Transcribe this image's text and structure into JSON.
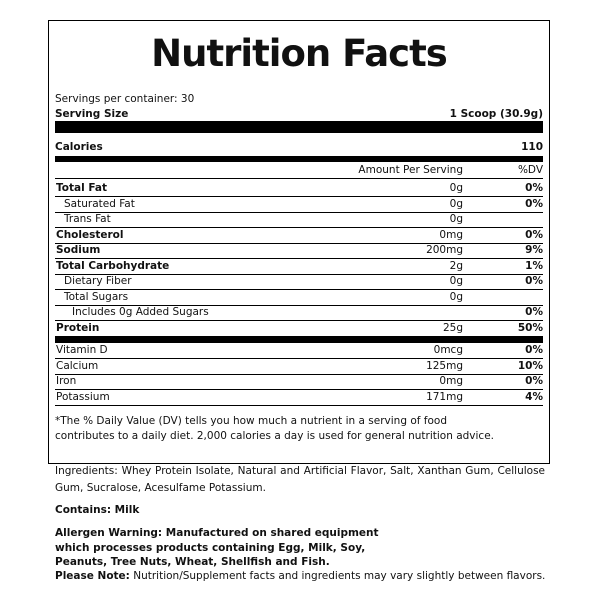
{
  "label": {
    "title": "Nutrition Facts",
    "servings": "Servings per container: 30",
    "serving_size_label": "Serving Size",
    "serving_size": "1 Scoop (30.9g)",
    "calories_label": "Calories",
    "calories": "110",
    "amount_header": "Amount Per Serving",
    "dv_header": "%DV",
    "nutrients": [
      {
        "label": "Total Fat",
        "amount": "0g",
        "dv": "0%",
        "bold": true,
        "indent": 0
      },
      {
        "label": "Saturated Fat",
        "amount": "0g",
        "dv": "0%",
        "bold": false,
        "indent": 1
      },
      {
        "label": "Trans Fat",
        "amount": "0g",
        "bold": false,
        "indent": 1
      },
      {
        "label": "Cholesterol",
        "amount": "0mg",
        "dv": "0%",
        "bold": true,
        "indent": 0
      },
      {
        "label": "Sodium",
        "amount": "200mg",
        "dv": "9%",
        "bold": true,
        "indent": 0
      },
      {
        "label": "Total Carbohydrate",
        "amount": "2g",
        "dv": "1%",
        "bold": true,
        "indent": 0
      },
      {
        "label": "Dietary Fiber",
        "amount": "0g",
        "dv": "0%",
        "bold": false,
        "indent": 1
      },
      {
        "label": "Total Sugars",
        "amount": "0g",
        "bold": false,
        "indent": 1
      },
      {
        "label": "Includes 0g Added Sugars",
        "dv": "0%",
        "bold": false,
        "indent": 2
      },
      {
        "label": "Protein",
        "amount": "25g",
        "dv": "50%",
        "bold": true,
        "indent": 0
      }
    ],
    "vitamins": [
      {
        "label": "Vitamin D",
        "amount": "0mcg",
        "dv": "0%"
      },
      {
        "label": "Calcium",
        "amount": "125mg",
        "dv": "10%"
      },
      {
        "label": "Iron",
        "amount": "0mg",
        "dv": "0%"
      },
      {
        "label": "Potassium",
        "amount": "171mg",
        "dv": "4%"
      }
    ],
    "footnote": "*The % Daily Value (DV) tells you how much a nutrient in a serving of food contributes to a daily diet. 2,000 calories a day is used for general nutrition advice."
  },
  "ingredients": "Ingredients: Whey Protein Isolate, Natural and Artificial Flavor, Salt, Xanthan Gum, Cellulose Gum, Sucralose, Acesulfame Potassium.",
  "contains": "Contains: Milk",
  "allergen_warning": "Allergen Warning: Manufactured on shared equipment which processes products containing Egg, Milk, Soy, Peanuts, Tree Nuts, Wheat, Shellfish and Fish.",
  "note_label": "Please Note:",
  "note": "Nutrition/Supplement facts and ingredients may vary slightly between flavors."
}
